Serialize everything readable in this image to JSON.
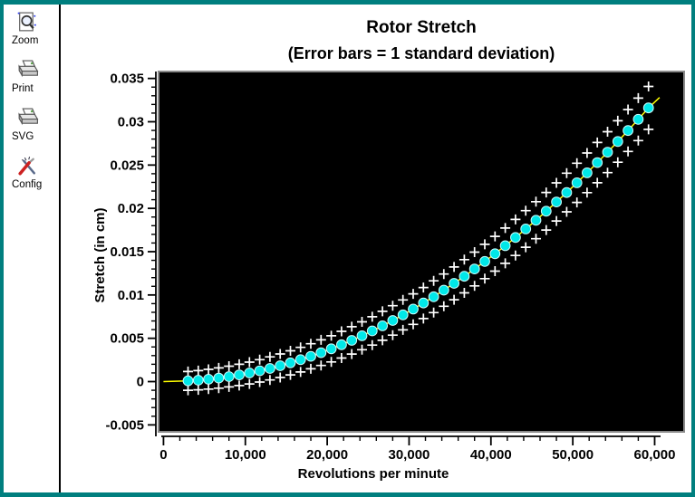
{
  "toolbar": {
    "buttons": [
      {
        "label": "Zoom",
        "icon": "magnifier-document"
      },
      {
        "label": "Print",
        "icon": "printer"
      },
      {
        "label": "SVG",
        "icon": "printer-export"
      },
      {
        "label": "Config",
        "icon": "crossed-tools"
      }
    ]
  },
  "colors": {
    "window_border": "#007f7f",
    "toolbar_separator": "#000000",
    "plot_background": "#000000",
    "plot_frame": "#8a8a8a",
    "data_dot": "#00e8e8",
    "data_line": "#ffff00",
    "error_marker": "#ffffff",
    "text": "#000000"
  },
  "chart_data": {
    "type": "scatter",
    "title": "Rotor Stretch",
    "subtitle": "(Error bars = 1 standard deviation)",
    "xlabel": "Revolutions per minute",
    "ylabel": "Stretch (in cm)",
    "grid": false,
    "legend_position": "none",
    "xlim": [
      -600,
      63600
    ],
    "ylim": [
      -0.0058,
      0.0358
    ],
    "x_major_ticks": [
      0,
      10000,
      20000,
      30000,
      40000,
      50000,
      60000
    ],
    "x_major_tick_labels": [
      "0",
      "10,000",
      "20,000",
      "30,000",
      "40,000",
      "50,000",
      "60,000"
    ],
    "x_minor_step": 2000,
    "y_major_ticks": [
      -0.005,
      0,
      0.005,
      0.01,
      0.015,
      0.02,
      0.025,
      0.03,
      0.035
    ],
    "y_major_tick_labels": [
      "-0.005",
      "0",
      "0.005",
      "0.01",
      "0.015",
      "0.02",
      "0.025",
      "0.03",
      "0.035"
    ],
    "y_minor_step": 0.001,
    "series": [
      {
        "name": "stretch",
        "style": "dots-with-line",
        "dot_color": "#00e8e8",
        "line_color": "#ffff00",
        "x": [
          3000,
          4250,
          5500,
          6750,
          8000,
          9250,
          10500,
          11750,
          13000,
          14250,
          15500,
          16750,
          18000,
          19250,
          20500,
          21750,
          23000,
          24250,
          25500,
          26750,
          28000,
          29250,
          30500,
          31750,
          33000,
          34250,
          35500,
          36750,
          38000,
          39250,
          40500,
          41750,
          43000,
          44250,
          45500,
          46750,
          48000,
          49250,
          50500,
          51750,
          53000,
          54250,
          55500,
          56750,
          58000,
          59250
        ],
        "y": [
          8e-05,
          0.00016,
          0.00027,
          0.00041,
          0.00058,
          0.00077,
          0.00099,
          0.00124,
          0.00152,
          0.00183,
          0.00216,
          0.00253,
          0.00292,
          0.00334,
          0.00378,
          0.00426,
          0.00476,
          0.00529,
          0.00585,
          0.00644,
          0.00706,
          0.0077,
          0.00837,
          0.00907,
          0.0098,
          0.01056,
          0.01134,
          0.01216,
          0.013,
          0.01387,
          0.01476,
          0.01569,
          0.01664,
          0.01762,
          0.01863,
          0.01967,
          0.02074,
          0.02183,
          0.02295,
          0.0241,
          0.02528,
          0.02649,
          0.02772,
          0.02899,
          0.03028,
          0.0316
        ]
      },
      {
        "name": "error-bars",
        "style": "plus-markers-above-and-below",
        "color": "#ffffff",
        "deviation": [
          0.00108,
          0.00111,
          0.00114,
          0.00117,
          0.0012,
          0.00123,
          0.00126,
          0.00129,
          0.00133,
          0.00136,
          0.00139,
          0.00142,
          0.00145,
          0.00148,
          0.00151,
          0.00154,
          0.00158,
          0.00161,
          0.00164,
          0.00167,
          0.0017,
          0.00173,
          0.00176,
          0.00179,
          0.00183,
          0.00186,
          0.00189,
          0.00192,
          0.00195,
          0.00198,
          0.00201,
          0.00204,
          0.00208,
          0.00211,
          0.00214,
          0.00217,
          0.0022,
          0.00223,
          0.00226,
          0.00229,
          0.00233,
          0.00236,
          0.00239,
          0.00242,
          0.00245,
          0.00248
        ]
      }
    ],
    "line_extension": {
      "start": [
        0,
        0.0
      ],
      "end": [
        60600,
        0.0328
      ]
    }
  }
}
